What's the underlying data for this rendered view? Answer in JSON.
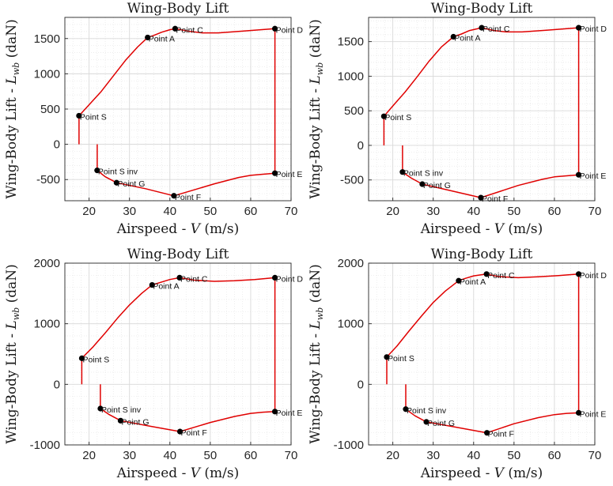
{
  "colors": {
    "curve": "#e00000",
    "marker": "#000000",
    "grid_major": "#d9d9d9",
    "grid_minor": "#e6e6e6",
    "axes": "#262626"
  },
  "chart_data": [
    {
      "type": "line",
      "title": "Wing-Body Lift",
      "xlabel": "Airspeed - V (m/s)",
      "ylabel": "Wing-Body Lift - L_wb (daN)",
      "xlim": [
        14,
        70
      ],
      "ylim": [
        -800,
        1800
      ],
      "xticks": [
        "20",
        "30",
        "40",
        "50",
        "60",
        "70"
      ],
      "yticks": [
        "-500",
        "0",
        "500",
        "1000",
        "1500"
      ],
      "grid": true,
      "minor_grid": true,
      "series": [
        {
          "x": [
            17.5,
            17.5
          ],
          "y": [
            0,
            405
          ]
        },
        {
          "x": [
            17.5,
            20,
            23,
            26,
            29,
            32,
            34.5
          ],
          "y": [
            405,
            560,
            750,
            970,
            1190,
            1380,
            1515
          ]
        },
        {
          "x": [
            34.5,
            36,
            38,
            40,
            41.3
          ],
          "y": [
            1515,
            1545,
            1590,
            1625,
            1640
          ]
        },
        {
          "x": [
            41.3,
            45,
            48,
            52,
            58,
            66
          ],
          "y": [
            1640,
            1600,
            1580,
            1580,
            1605,
            1640
          ]
        },
        {
          "x": [
            66,
            66
          ],
          "y": [
            1640,
            -410
          ]
        },
        {
          "x": [
            66,
            63,
            60,
            57,
            51,
            41
          ],
          "y": [
            -410,
            -425,
            -440,
            -470,
            -560,
            -730
          ]
        },
        {
          "x": [
            41,
            34,
            26.8
          ],
          "y": [
            -730,
            -630,
            -545
          ]
        },
        {
          "x": [
            26.8,
            24,
            22
          ],
          "y": [
            -545,
            -460,
            -370
          ]
        },
        {
          "x": [
            22,
            22
          ],
          "y": [
            -370,
            0
          ]
        }
      ],
      "points": [
        {
          "label": "Point S",
          "x": 17.5,
          "y": 405
        },
        {
          "label": "Point A",
          "x": 34.5,
          "y": 1515
        },
        {
          "label": "Point C",
          "x": 41.3,
          "y": 1640
        },
        {
          "label": "Point D",
          "x": 66,
          "y": 1640
        },
        {
          "label": "Point E",
          "x": 66,
          "y": -410
        },
        {
          "label": "Point F",
          "x": 41,
          "y": -730
        },
        {
          "label": "Point G",
          "x": 26.8,
          "y": -545
        },
        {
          "label": "Point S inv",
          "x": 22,
          "y": -370
        }
      ]
    },
    {
      "type": "line",
      "title": "Wing-Body Lift",
      "xlabel": "Airspeed - V (m/s)",
      "ylabel": "Wing-Body Lift - L_wb (daN)",
      "xlim": [
        14,
        70
      ],
      "ylim": [
        -800,
        1850
      ],
      "xticks": [
        "20",
        "30",
        "40",
        "50",
        "60",
        "70"
      ],
      "yticks": [
        "-500",
        "0",
        "500",
        "1000",
        "1500"
      ],
      "grid": true,
      "minor_grid": true,
      "series": [
        {
          "x": [
            17.8,
            17.8
          ],
          "y": [
            0,
            420
          ]
        },
        {
          "x": [
            17.8,
            20,
            23,
            26,
            29,
            32,
            35
          ],
          "y": [
            420,
            570,
            770,
            990,
            1220,
            1420,
            1570
          ]
        },
        {
          "x": [
            35,
            37,
            39,
            42
          ],
          "y": [
            1570,
            1610,
            1660,
            1700
          ]
        },
        {
          "x": [
            42,
            45,
            48,
            52,
            58,
            66
          ],
          "y": [
            1700,
            1660,
            1640,
            1640,
            1665,
            1700
          ]
        },
        {
          "x": [
            66,
            66
          ],
          "y": [
            1700,
            -425
          ]
        },
        {
          "x": [
            66,
            63,
            60,
            57,
            51,
            41.8
          ],
          "y": [
            -425,
            -440,
            -455,
            -490,
            -580,
            -755
          ]
        },
        {
          "x": [
            41.8,
            34,
            27.3
          ],
          "y": [
            -755,
            -650,
            -560
          ]
        },
        {
          "x": [
            27.3,
            24.5,
            22.4
          ],
          "y": [
            -560,
            -470,
            -385
          ]
        },
        {
          "x": [
            22.4,
            22.4
          ],
          "y": [
            -385,
            0
          ]
        }
      ],
      "points": [
        {
          "label": "Point S",
          "x": 17.8,
          "y": 420
        },
        {
          "label": "Point A",
          "x": 35,
          "y": 1570
        },
        {
          "label": "Point C",
          "x": 42,
          "y": 1700
        },
        {
          "label": "Point D",
          "x": 66,
          "y": 1700
        },
        {
          "label": "Point E",
          "x": 66,
          "y": -425
        },
        {
          "label": "Point F",
          "x": 41.8,
          "y": -755
        },
        {
          "label": "Point G",
          "x": 27.3,
          "y": -560
        },
        {
          "label": "Point S inv",
          "x": 22.4,
          "y": -385
        }
      ]
    },
    {
      "type": "line",
      "title": "Wing-Body Lift",
      "xlabel": "Airspeed - V (m/s)",
      "ylabel": "Wing-Body Lift - L_wb (daN)",
      "xlim": [
        14,
        70
      ],
      "ylim": [
        -1000,
        2000
      ],
      "xticks": [
        "20",
        "30",
        "40",
        "50",
        "60",
        "70"
      ],
      "yticks": [
        "-1000",
        "0",
        "1000",
        "2000"
      ],
      "grid": true,
      "minor_grid": true,
      "series": [
        {
          "x": [
            18.2,
            18.2
          ],
          "y": [
            0,
            430
          ]
        },
        {
          "x": [
            18.2,
            21,
            24,
            27,
            30,
            33,
            35.6
          ],
          "y": [
            430,
            620,
            850,
            1090,
            1310,
            1500,
            1640
          ]
        },
        {
          "x": [
            35.6,
            38,
            40,
            42.4
          ],
          "y": [
            1640,
            1690,
            1730,
            1760
          ]
        },
        {
          "x": [
            42.4,
            46,
            51,
            56,
            61,
            66
          ],
          "y": [
            1760,
            1720,
            1700,
            1710,
            1730,
            1760
          ]
        },
        {
          "x": [
            66,
            66
          ],
          "y": [
            1760,
            -450
          ]
        },
        {
          "x": [
            66,
            63,
            60,
            56,
            50,
            42.5
          ],
          "y": [
            -450,
            -460,
            -480,
            -530,
            -630,
            -780
          ]
        },
        {
          "x": [
            42.5,
            35,
            27.8
          ],
          "y": [
            -780,
            -690,
            -600
          ]
        },
        {
          "x": [
            27.8,
            25,
            22.8
          ],
          "y": [
            -600,
            -500,
            -400
          ]
        },
        {
          "x": [
            22.8,
            22.8
          ],
          "y": [
            -400,
            0
          ]
        }
      ],
      "points": [
        {
          "label": "Point S",
          "x": 18.2,
          "y": 430
        },
        {
          "label": "Point A",
          "x": 35.6,
          "y": 1640
        },
        {
          "label": "Point C",
          "x": 42.4,
          "y": 1760
        },
        {
          "label": "Point D",
          "x": 66,
          "y": 1760
        },
        {
          "label": "Point E",
          "x": 66,
          "y": -450
        },
        {
          "label": "Point F",
          "x": 42.5,
          "y": -780
        },
        {
          "label": "Point G",
          "x": 27.8,
          "y": -600
        },
        {
          "label": "Point S inv",
          "x": 22.8,
          "y": -400
        }
      ]
    },
    {
      "type": "line",
      "title": "Wing-Body Lift",
      "xlabel": "Airspeed - V (m/s)",
      "ylabel": "Wing-Body Lift - L_wb (daN)",
      "xlim": [
        14,
        70
      ],
      "ylim": [
        -1000,
        2000
      ],
      "xticks": [
        "20",
        "30",
        "40",
        "50",
        "60",
        "70"
      ],
      "yticks": [
        "-1000",
        "0",
        "1000",
        "2000"
      ],
      "grid": true,
      "minor_grid": true,
      "series": [
        {
          "x": [
            18.5,
            18.5
          ],
          "y": [
            0,
            450
          ]
        },
        {
          "x": [
            18.5,
            21,
            24,
            27,
            30,
            33,
            36.3
          ],
          "y": [
            450,
            630,
            880,
            1120,
            1350,
            1540,
            1710
          ]
        },
        {
          "x": [
            36.3,
            38,
            40,
            43.2
          ],
          "y": [
            1710,
            1750,
            1790,
            1820
          ]
        },
        {
          "x": [
            43.2,
            46,
            51,
            56,
            61,
            66
          ],
          "y": [
            1820,
            1780,
            1760,
            1775,
            1795,
            1820
          ]
        },
        {
          "x": [
            66,
            66
          ],
          "y": [
            1820,
            -470
          ]
        },
        {
          "x": [
            66,
            63,
            60,
            56,
            50,
            43.3
          ],
          "y": [
            -470,
            -480,
            -500,
            -550,
            -650,
            -800
          ]
        },
        {
          "x": [
            43.3,
            35,
            28.3
          ],
          "y": [
            -800,
            -700,
            -620
          ]
        },
        {
          "x": [
            28.3,
            25.5,
            23.2
          ],
          "y": [
            -620,
            -520,
            -410
          ]
        },
        {
          "x": [
            23.2,
            23.2
          ],
          "y": [
            -410,
            0
          ]
        }
      ],
      "points": [
        {
          "label": "Point S",
          "x": 18.5,
          "y": 450
        },
        {
          "label": "Point A",
          "x": 36.3,
          "y": 1710
        },
        {
          "label": "Point C",
          "x": 43.2,
          "y": 1820
        },
        {
          "label": "Point D",
          "x": 66,
          "y": 1820
        },
        {
          "label": "Point E",
          "x": 66,
          "y": -470
        },
        {
          "label": "Point F",
          "x": 43.3,
          "y": -800
        },
        {
          "label": "Point G",
          "x": 28.3,
          "y": -620
        },
        {
          "label": "Point S inv",
          "x": 23.2,
          "y": -410
        }
      ]
    }
  ]
}
